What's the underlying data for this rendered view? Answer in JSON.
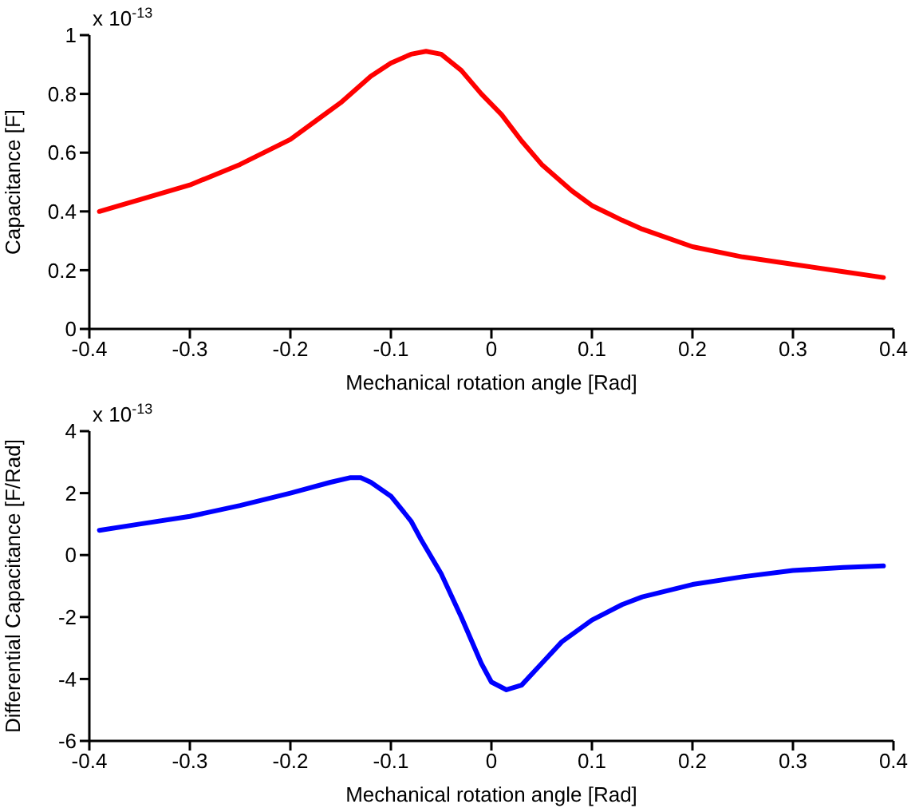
{
  "chart_data": [
    {
      "type": "line",
      "xlabel": "Mechanical rotation angle [Rad]",
      "ylabel": "Capacitance [F]",
      "annotations": [
        "x 10$^{-13}$"
      ],
      "xlim": [
        -0.4,
        0.4
      ],
      "xticks": [
        -0.4,
        -0.3,
        -0.2,
        -0.1,
        0,
        0.1,
        0.2,
        0.3,
        0.4
      ],
      "ylim": [
        0,
        1
      ],
      "yticks": [
        0,
        0.2,
        0.4,
        0.6,
        0.8,
        1
      ],
      "grid": false,
      "legend": false,
      "marker": "none",
      "line_style": "solid",
      "x": [
        -0.39,
        -0.35,
        -0.3,
        -0.25,
        -0.2,
        -0.17,
        -0.15,
        -0.12,
        -0.1,
        -0.08,
        -0.065,
        -0.05,
        -0.03,
        -0.01,
        0.01,
        0.03,
        0.05,
        0.08,
        0.1,
        0.13,
        0.15,
        0.2,
        0.25,
        0.3,
        0.35,
        0.39
      ],
      "series": [
        {
          "color": "#ff0000",
          "values": [
            0.4,
            0.44,
            0.49,
            0.56,
            0.645,
            0.72,
            0.77,
            0.86,
            0.905,
            0.935,
            0.945,
            0.935,
            0.88,
            0.8,
            0.73,
            0.64,
            0.56,
            0.47,
            0.42,
            0.37,
            0.34,
            0.28,
            0.245,
            0.22,
            0.195,
            0.175
          ]
        }
      ]
    },
    {
      "type": "line",
      "xlabel": "Mechanical rotation angle [Rad]",
      "ylabel": "Differential Capacitance [F/Rad]",
      "annotations": [
        "x 10$^{-13}$"
      ],
      "xlim": [
        -0.4,
        0.4
      ],
      "xticks": [
        -0.4,
        -0.3,
        -0.2,
        -0.1,
        0,
        0.1,
        0.2,
        0.3,
        0.4
      ],
      "ylim": [
        -6,
        4
      ],
      "yticks": [
        -6,
        -4,
        -2,
        0,
        2,
        4
      ],
      "grid": false,
      "legend": false,
      "marker": "none",
      "line_style": "solid",
      "x": [
        -0.39,
        -0.35,
        -0.3,
        -0.25,
        -0.2,
        -0.16,
        -0.14,
        -0.13,
        -0.12,
        -0.1,
        -0.08,
        -0.07,
        -0.05,
        -0.03,
        -0.01,
        0,
        0.015,
        0.03,
        0.05,
        0.07,
        0.1,
        0.13,
        0.15,
        0.2,
        0.25,
        0.3,
        0.35,
        0.39
      ],
      "series": [
        {
          "color": "#0000ff",
          "values": [
            0.8,
            1.0,
            1.25,
            1.6,
            2.0,
            2.35,
            2.5,
            2.5,
            2.35,
            1.9,
            1.1,
            0.5,
            -0.6,
            -2.0,
            -3.5,
            -4.1,
            -4.35,
            -4.2,
            -3.5,
            -2.8,
            -2.1,
            -1.6,
            -1.35,
            -0.95,
            -0.7,
            -0.5,
            -0.4,
            -0.35
          ]
        }
      ]
    }
  ]
}
